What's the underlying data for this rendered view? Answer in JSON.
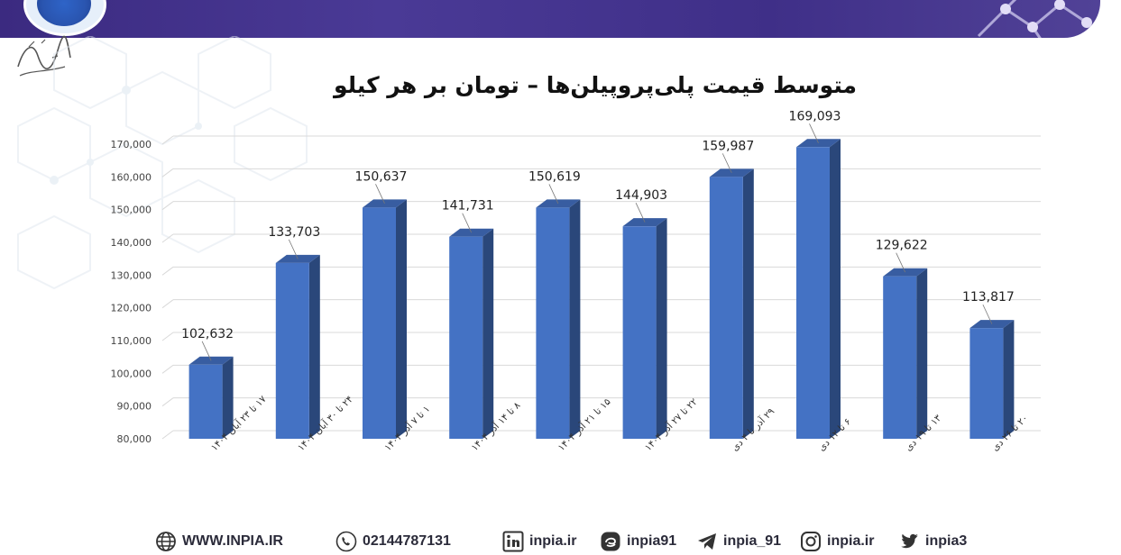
{
  "header": {
    "brand_colors": {
      "bar": "#3f2f88",
      "logo_blue": "#2e64c8"
    }
  },
  "chart_data": {
    "type": "bar",
    "title": "متوسط قیمت پلی‌پروپیلن‌ها – تومان بر هر کیلو",
    "categories": [
      "۱۷ تا ۲۳ آبان ۱۴۰۴",
      "۲۴ تا ۳۰ آبان ۱۴۰۴",
      "۱ تا ۷ آذر ۱۴۰۴",
      "۸ تا ۱۴ آذر ۱۴۰۴",
      "۱۵ تا ۲۱ آذر ۱۴۰۴",
      "۲۲ تا ۲۷ آذر ۱۴۰۴",
      "۲۹ آذر تا ۴ دی",
      "۶ تا ۱۲ دی",
      "۱۳ تا ۱۹ دی",
      "۲۰ تا ۲۶ دی"
    ],
    "values": [
      102632,
      133703,
      150637,
      141731,
      150619,
      144903,
      159987,
      169093,
      129622,
      113817
    ],
    "data_labels": [
      "102,632",
      "133,703",
      "150,637",
      "141,731",
      "150,619",
      "144,903",
      "159,987",
      "169,093",
      "129,622",
      "113,817"
    ],
    "ylim": [
      80000,
      170000
    ],
    "yticks": [
      80000,
      90000,
      100000,
      110000,
      120000,
      130000,
      140000,
      150000,
      160000,
      170000
    ],
    "ytick_labels": [
      "80,000",
      "90,000",
      "100,000",
      "110,000",
      "120,000",
      "130,000",
      "140,000",
      "150,000",
      "160,000",
      "170,000"
    ],
    "grid": true,
    "bar_color": "#4472c4"
  },
  "footer": {
    "website": "WWW.INPIA.IR",
    "phone": "02144787131",
    "linkedin": "inpia.ir",
    "eitaa": "inpia91",
    "telegram": "inpia_91",
    "instagram": "inpia.ir",
    "twitter": "inpia3"
  }
}
